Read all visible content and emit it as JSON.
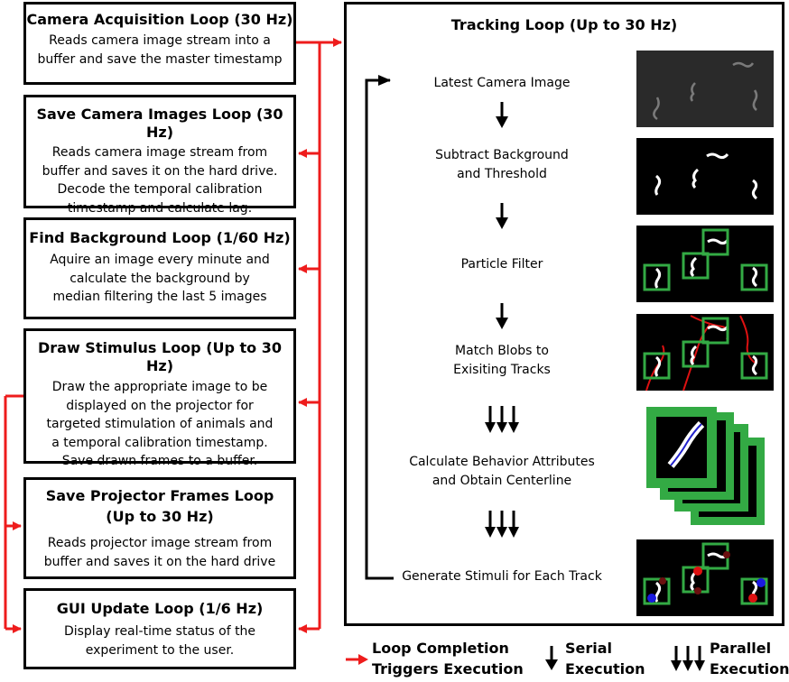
{
  "loops": [
    {
      "title": "Camera Acquisition Loop (30 Hz)",
      "desc": [
        "Reads camera image stream into a",
        "buffer and save the master timestamp"
      ]
    },
    {
      "title": "Save Camera Images Loop (30 Hz)",
      "desc": [
        "Reads camera image stream from",
        "buffer and saves it on the hard drive.",
        "Decode the temporal calibration",
        "timestamp and calculate lag."
      ]
    },
    {
      "title": "Find Background Loop (1/60 Hz)",
      "desc": [
        "Aquire an image every minute and",
        "calculate the background by",
        "median filtering the last 5 images"
      ]
    },
    {
      "title": "Draw Stimulus Loop (Up to 30 Hz)",
      "desc": [
        "Draw the appropriate image to be",
        "displayed on the projector for",
        "targeted stimulation of animals and",
        "a temporal calibration timestamp.",
        "Save drawn frames to a buffer."
      ]
    },
    {
      "title": [
        "Save Projector Frames Loop",
        "(Up to 30 Hz)"
      ],
      "desc": [
        "Reads projector image stream from",
        "buffer and saves it on the hard drive"
      ]
    },
    {
      "title": "GUI Update Loop (1/6 Hz)",
      "desc": [
        "Display real-time status of the",
        "experiment to the user."
      ]
    }
  ],
  "tracking": {
    "title": "Tracking Loop (Up to 30 Hz)",
    "steps": [
      {
        "label": [
          "Latest Camera Image"
        ]
      },
      {
        "label": [
          "Subtract Background",
          "and Threshold"
        ]
      },
      {
        "label": [
          "Particle Filter"
        ]
      },
      {
        "label": [
          "Match Blobs to",
          "Exisiting Tracks"
        ]
      },
      {
        "label": [
          "Calculate Behavior Attributes",
          "and Obtain Centerline"
        ]
      },
      {
        "label": [
          "Generate Stimuli for Each Track"
        ]
      }
    ]
  },
  "legend": {
    "completion": [
      "Loop Completion",
      "Triggers Execution"
    ],
    "serial": [
      "Serial",
      "Execution"
    ],
    "parallel": [
      "Parallel",
      "Execution"
    ]
  },
  "colors": {
    "trigger_arrow": "#ee1c1c",
    "track_box": "#33aa44",
    "stimulus_dot_red": "#dd1111",
    "stimulus_dot_dark": "#6b0f0f",
    "stimulus_dot_blue": "#1a1ae0"
  }
}
